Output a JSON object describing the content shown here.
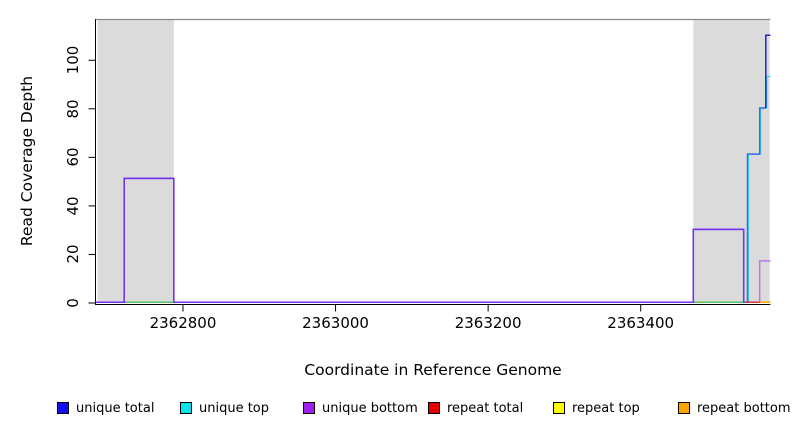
{
  "axes": {
    "x": {
      "label": "Coordinate in Reference Genome",
      "ticks": [
        2362800,
        2363000,
        2363200,
        2363400
      ],
      "range": [
        2362686,
        2363570
      ]
    },
    "y": {
      "label": "Read Coverage Depth",
      "ticks": [
        0,
        20,
        40,
        60,
        80,
        100
      ],
      "range": [
        0,
        117
      ]
    }
  },
  "legend": {
    "items": [
      {
        "label": "unique total",
        "color": "#1111EE"
      },
      {
        "label": "unique top",
        "color": "#00E5E5"
      },
      {
        "label": "unique bottom",
        "color": "#A020F0"
      },
      {
        "label": "repeat total",
        "color": "#E80000"
      },
      {
        "label": "repeat top",
        "color": "#FFFF00"
      },
      {
        "label": "repeat bottom",
        "color": "#FFA500"
      }
    ]
  },
  "colors": {
    "band_fill": "#DBDBDB",
    "band_edge": "#A3A3A3",
    "top_boundary": "#8A8A8A",
    "axis": "#000000"
  },
  "chart_data": {
    "type": "line",
    "title": "",
    "xlabel": "Coordinate in Reference Genome",
    "ylabel": "Read Coverage Depth",
    "xlim": [
      2362686,
      2363570
    ],
    "ylim": [
      0,
      117
    ],
    "x_ticks": [
      2362800,
      2363000,
      2363200,
      2363400
    ],
    "y_ticks": [
      0,
      20,
      40,
      60,
      80,
      100
    ],
    "grid": false,
    "legend_position": "bottom",
    "shaded_regions": [
      {
        "name": "left-gray-band",
        "x0": 2362688,
        "x1": 2362788
      },
      {
        "name": "right-gray-band",
        "x0": 2363469,
        "x1": 2363569
      }
    ],
    "series": [
      {
        "name": "repeat top",
        "legend_color": "#FFFF00",
        "paths": [
          {
            "color": "#5DBB63",
            "points": [
              [
                2362723,
                0
              ],
              [
                2362788,
                0
              ]
            ]
          },
          {
            "color": "#5DBB63",
            "points": [
              [
                2363469,
                0
              ],
              [
                2363543,
                0
              ]
            ]
          }
        ]
      },
      {
        "name": "unique top",
        "legend_color": "#00E5E5",
        "paths": [
          {
            "color": "#35DFE8",
            "points": [
              [
                2363541,
                0
              ],
              [
                2363541,
                61
              ],
              [
                2363557,
                61
              ],
              [
                2363557,
                80
              ],
              [
                2363565,
                80
              ],
              [
                2363565,
                93
              ],
              [
                2363570,
                93
              ]
            ]
          }
        ]
      },
      {
        "name": "unique total",
        "legend_color": "#1111EE",
        "paths": [
          {
            "color": "#3E6BE3",
            "points": [
              [
                2362686,
                0
              ],
              [
                2362723,
                0
              ],
              [
                2362723,
                51
              ],
              [
                2362788,
                51
              ],
              [
                2362788,
                0
              ],
              [
                2363469,
                0
              ],
              [
                2363469,
                30
              ],
              [
                2363535,
                30
              ],
              [
                2363535,
                0
              ],
              [
                2363540,
                0
              ],
              [
                2363540,
                61
              ],
              [
                2363556,
                61
              ],
              [
                2363556,
                80
              ],
              [
                2363564,
                80
              ]
            ]
          },
          {
            "color": "#2121CE",
            "points": [
              [
                2363564,
                80
              ],
              [
                2363564,
                110
              ],
              [
                2363570,
                110
              ]
            ]
          }
        ]
      },
      {
        "name": "unique bottom",
        "legend_color": "#A020F0",
        "paths": [
          {
            "color": "#7B2EF0",
            "points": [
              [
                2362686,
                0
              ],
              [
                2362723,
                0
              ],
              [
                2362723,
                51
              ],
              [
                2362788,
                51
              ],
              [
                2362788,
                0
              ],
              [
                2363469,
                0
              ],
              [
                2363469,
                30
              ],
              [
                2363535,
                30
              ],
              [
                2363535,
                0
              ]
            ]
          },
          {
            "color": "#BD78E8",
            "points": [
              [
                2363556,
                0
              ],
              [
                2363556,
                17
              ],
              [
                2363570,
                17
              ]
            ]
          }
        ]
      },
      {
        "name": "repeat total",
        "legend_color": "#E80000",
        "paths": [
          {
            "color": "#DC2F3E",
            "points": [
              [
                2363537,
                0
              ],
              [
                2363556,
                0
              ]
            ]
          }
        ]
      },
      {
        "name": "repeat bottom",
        "legend_color": "#FFA500",
        "paths": [
          {
            "color": "#FFA500",
            "points": [
              [
                2363556,
                0
              ],
              [
                2363570,
                0
              ]
            ]
          }
        ]
      }
    ]
  }
}
